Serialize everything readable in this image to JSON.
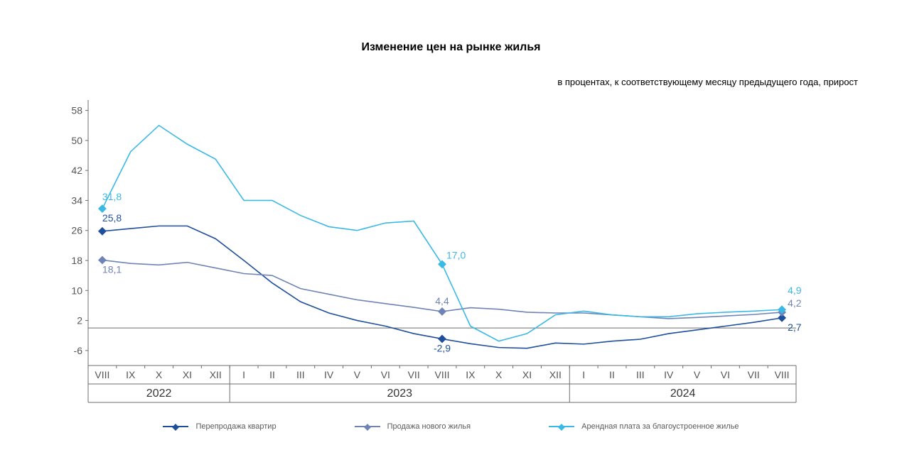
{
  "title": "Изменение цен на рынке жилья",
  "subtitle": "в процентах, к соответствующему месяцу предыдущего года, прирост",
  "chart": {
    "type": "line",
    "background_color": "#ffffff",
    "axis_color": "#6e6e6e",
    "tick_color": "#6e6e6e",
    "y_label_fontsize": 14,
    "x_label_fontsize": 14,
    "year_label_fontsize": 16,
    "point_label_fontsize": 14,
    "ylim": [
      -10,
      60
    ],
    "yticks": [
      -6,
      2,
      10,
      18,
      26,
      34,
      42,
      50,
      58
    ],
    "x_categories": [
      "VIII",
      "IX",
      "X",
      "XI",
      "XII",
      "I",
      "II",
      "III",
      "IV",
      "V",
      "VI",
      "VII",
      "VIII",
      "IX",
      "X",
      "XI",
      "XII",
      "I",
      "II",
      "III",
      "IV",
      "V",
      "VI",
      "VII",
      "VIII"
    ],
    "year_groups": [
      {
        "label": "2022",
        "start_index": 0,
        "end_index": 4
      },
      {
        "label": "2023",
        "start_index": 5,
        "end_index": 16
      },
      {
        "label": "2024",
        "start_index": 17,
        "end_index": 24
      }
    ],
    "series": [
      {
        "id": "resale",
        "label": "Перепродажа квартир",
        "color": "#1f4e9c",
        "line_width": 1.6,
        "show_markers_at": [
          0,
          12,
          24
        ],
        "values": [
          25.8,
          26.5,
          27.2,
          27.2,
          23.8,
          18.0,
          12.0,
          7.0,
          4.0,
          2.0,
          0.5,
          -1.5,
          -2.9,
          -4.2,
          -5.2,
          -5.4,
          -4.0,
          -4.3,
          -3.5,
          -3.0,
          -1.5,
          -0.5,
          0.5,
          1.5,
          2.7
        ],
        "point_labels": [
          {
            "index": 0,
            "text": "25,8",
            "dx": 0,
            "dy": -14,
            "align": "start"
          },
          {
            "index": 12,
            "text": "-2,9",
            "dx": 0,
            "dy": 18,
            "align": "middle"
          },
          {
            "index": 24,
            "text": "2,7",
            "dx": 8,
            "dy": 18,
            "align": "start"
          }
        ],
        "legend_order": 0
      },
      {
        "id": "new",
        "label": "Продажа нового жилья",
        "color": "#6f84b6",
        "line_width": 1.6,
        "show_markers_at": [
          0,
          12,
          24
        ],
        "values": [
          18.1,
          17.2,
          16.8,
          17.5,
          16.0,
          14.5,
          14.0,
          10.5,
          9.0,
          7.5,
          6.5,
          5.5,
          4.4,
          5.4,
          5.0,
          4.2,
          4.0,
          4.0,
          3.5,
          3.0,
          2.5,
          2.8,
          3.2,
          3.6,
          4.2
        ],
        "point_labels": [
          {
            "index": 0,
            "text": "18,1",
            "dx": 0,
            "dy": 18,
            "align": "start"
          },
          {
            "index": 12,
            "text": "4,4",
            "dx": 0,
            "dy": -10,
            "align": "middle"
          },
          {
            "index": 24,
            "text": "4,2",
            "dx": 8,
            "dy": -8,
            "align": "start"
          }
        ],
        "legend_order": 1
      },
      {
        "id": "rent",
        "label": "Арендная плата за благоустроенное жилье",
        "color": "#3bb9e6",
        "line_width": 1.6,
        "show_markers_at": [
          0,
          12,
          24
        ],
        "values": [
          31.8,
          47.0,
          54.0,
          49.0,
          45.0,
          34.0,
          34.0,
          30.0,
          27.0,
          26.0,
          28.0,
          28.5,
          17.0,
          0.5,
          -3.5,
          -1.5,
          3.5,
          4.5,
          3.5,
          3.0,
          3.0,
          3.8,
          4.2,
          4.5,
          4.9
        ],
        "point_labels": [
          {
            "index": 0,
            "text": "31,8",
            "dx": 0,
            "dy": -12,
            "align": "start"
          },
          {
            "index": 12,
            "text": "17,0",
            "dx": 6,
            "dy": -8,
            "align": "start"
          },
          {
            "index": 24,
            "text": "4,9",
            "dx": 8,
            "dy": -22,
            "align": "start"
          }
        ],
        "legend_order": 2
      }
    ]
  }
}
